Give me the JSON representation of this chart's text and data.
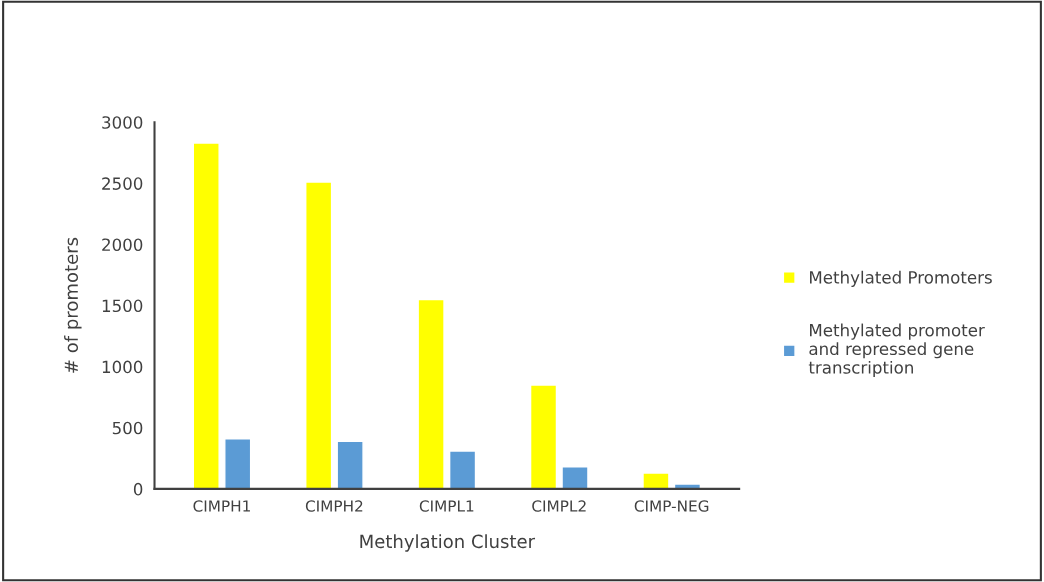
{
  "chart_data": {
    "type": "bar",
    "xlabel": "Methylation Cluster",
    "ylabel": "# of promoters",
    "categories": [
      "CIMPH1",
      "CIMPH2",
      "CIMPL1",
      "CIMPL2",
      "CIMP-NEG"
    ],
    "series": [
      {
        "name": "Methylated Promoters",
        "color": "#ffff00",
        "values": [
          2830,
          2510,
          1550,
          850,
          130
        ]
      },
      {
        "name": "Methylated promoter and repressed gene transcription",
        "color": "#5b9bd5",
        "values": [
          410,
          390,
          310,
          180,
          40
        ]
      }
    ],
    "ylim": [
      0,
      3000
    ],
    "yticks": [
      0,
      500,
      1000,
      1500,
      2000,
      2500,
      3000
    ],
    "grid": false,
    "legend": "right"
  }
}
